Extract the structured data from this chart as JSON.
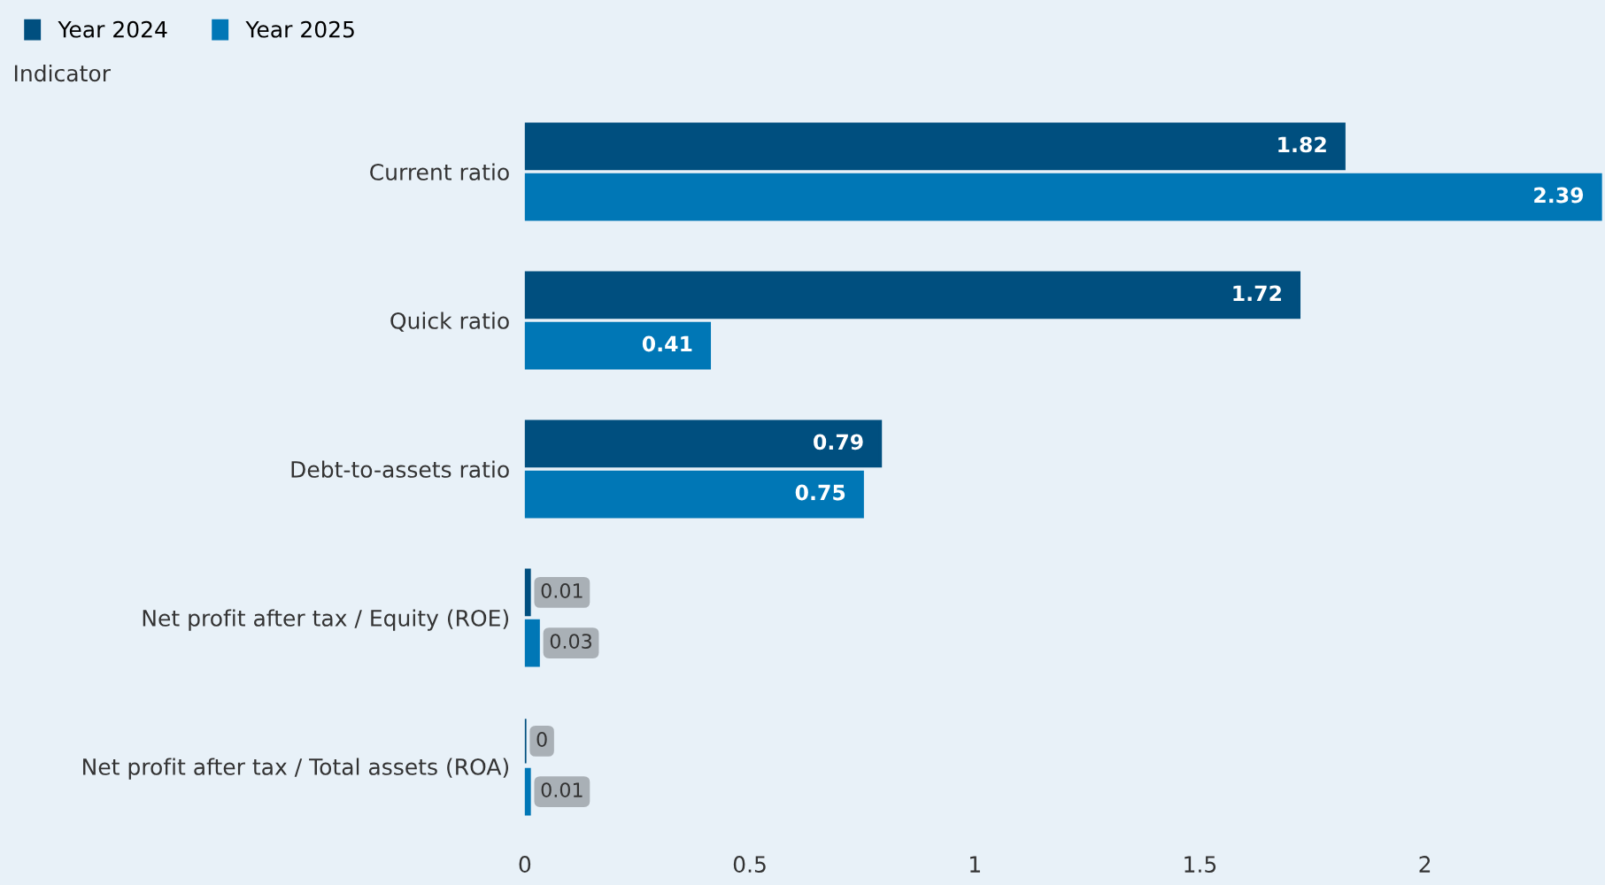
{
  "chart_data": {
    "type": "bar",
    "orientation": "horizontal",
    "ylabel": "Indicator",
    "categories": [
      "Current ratio",
      "Quick ratio",
      "Debt-to-assets ratio",
      "Net profit after tax / Equity (ROE)",
      "Net profit after tax / Total assets (ROA)"
    ],
    "series": [
      {
        "name": "Year 2024",
        "color": "#004f7f",
        "values": [
          1.82,
          1.72,
          0.79,
          0.01,
          0
        ]
      },
      {
        "name": "Year 2025",
        "color": "#0077b6",
        "values": [
          2.39,
          0.41,
          0.75,
          0.03,
          0.01
        ]
      }
    ],
    "xlim": [
      0,
      2.4
    ],
    "xticks": [
      0,
      0.5,
      1,
      1.5,
      2
    ],
    "data_labels": true,
    "legend": "top left",
    "grid": false
  }
}
